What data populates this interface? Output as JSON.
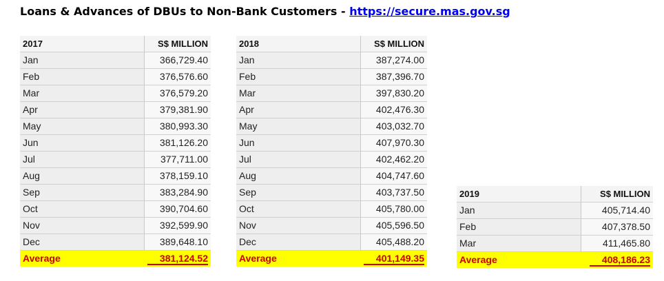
{
  "title": {
    "text": "Loans & Advances of DBUs to Non-Bank Customers - ",
    "link": "https://secure.mas.gov.sg"
  },
  "tables": [
    {
      "year": "2017",
      "unit": "S$ MILLION",
      "rows": [
        {
          "month": "Jan",
          "value": "366,729.40"
        },
        {
          "month": "Feb",
          "value": "376,576.60"
        },
        {
          "month": "Mar",
          "value": "376,579.20"
        },
        {
          "month": "Apr",
          "value": "379,381.90"
        },
        {
          "month": "May",
          "value": "380,993.30"
        },
        {
          "month": "Jun",
          "value": "381,126.20"
        },
        {
          "month": "Jul",
          "value": "377,711.00"
        },
        {
          "month": "Aug",
          "value": "378,159.10"
        },
        {
          "month": "Sep",
          "value": "383,284.90"
        },
        {
          "month": "Oct",
          "value": "390,704.60"
        },
        {
          "month": "Nov",
          "value": "392,599.90"
        },
        {
          "month": "Dec",
          "value": "389,648.10"
        }
      ],
      "average_label": "Average",
      "average": "381,124.52"
    },
    {
      "year": "2018",
      "unit": "S$ MILLION",
      "rows": [
        {
          "month": "Jan",
          "value": "387,274.00"
        },
        {
          "month": "Feb",
          "value": "387,396.70"
        },
        {
          "month": "Mar",
          "value": "397,830.20"
        },
        {
          "month": "Apr",
          "value": "402,476.30"
        },
        {
          "month": "May",
          "value": "403,032.70"
        },
        {
          "month": "Jun",
          "value": "407,970.30"
        },
        {
          "month": "Jul",
          "value": "402,462.20"
        },
        {
          "month": "Aug",
          "value": "404,747.60"
        },
        {
          "month": "Sep",
          "value": "403,737.50"
        },
        {
          "month": "Oct",
          "value": "405,780.00"
        },
        {
          "month": "Nov",
          "value": "405,596.50"
        },
        {
          "month": "Dec",
          "value": "405,488.20"
        }
      ],
      "average_label": "Average",
      "average": "401,149.35"
    },
    {
      "year": "2019",
      "unit": "S$ MILLION",
      "rows": [
        {
          "month": "Jan",
          "value": "405,714.40"
        },
        {
          "month": "Feb",
          "value": "407,378.50"
        },
        {
          "month": "Mar",
          "value": "411,465.80"
        }
      ],
      "average_label": "Average",
      "average": "408,186.23"
    }
  ],
  "colors": {
    "average_highlight": "#ffff00",
    "average_text": "#cc0000",
    "link": "#0000ee"
  }
}
